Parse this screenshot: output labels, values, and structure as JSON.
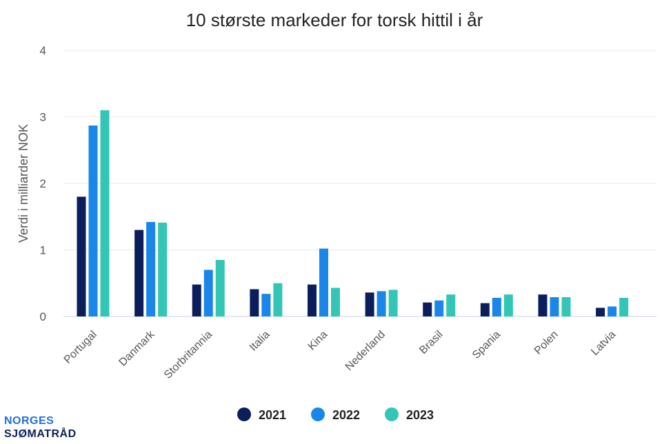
{
  "chart_data": {
    "type": "bar",
    "title": "10 største markeder for torsk hittil i år",
    "xlabel": "",
    "ylabel": "Verdi i milliarder NOK",
    "ylim": [
      0,
      4
    ],
    "yticks": [
      "0",
      "1",
      "2",
      "3",
      "4"
    ],
    "grid": true,
    "legend_position": "bottom",
    "categories": [
      "Portugal",
      "Danmark",
      "Storbritannia",
      "Italia",
      "Kina",
      "Nederland",
      "Brasil",
      "Spania",
      "Polen",
      "Latvia"
    ],
    "series": [
      {
        "name": "2021",
        "color": "#0b1e5b",
        "values": [
          1.8,
          1.3,
          0.48,
          0.41,
          0.48,
          0.36,
          0.21,
          0.2,
          0.33,
          0.13
        ]
      },
      {
        "name": "2022",
        "color": "#1a86ea",
        "values": [
          2.87,
          1.42,
          0.7,
          0.34,
          1.02,
          0.38,
          0.24,
          0.28,
          0.29,
          0.15
        ]
      },
      {
        "name": "2023",
        "color": "#33c6b6",
        "values": [
          3.1,
          1.41,
          0.85,
          0.5,
          0.43,
          0.4,
          0.33,
          0.33,
          0.29,
          0.28
        ]
      }
    ]
  },
  "logo": {
    "line1": "NORGES",
    "line2": "SJØMATRÅD"
  }
}
